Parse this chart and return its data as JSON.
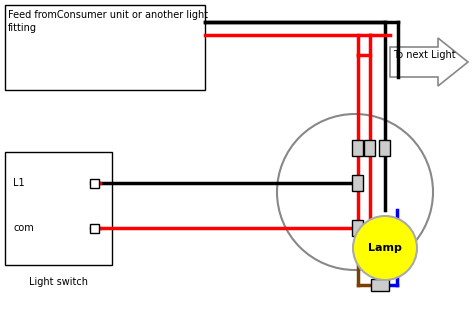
{
  "bg_color": "#ffffff",
  "feed_label": "Feed fromConsumer unit or another light\nfitting",
  "next_light_label": "To next Light",
  "lamp_label": "Lamp",
  "switch_label": "Light switch",
  "l1_label": "L1",
  "com_label": "com",
  "lw": 2.5
}
